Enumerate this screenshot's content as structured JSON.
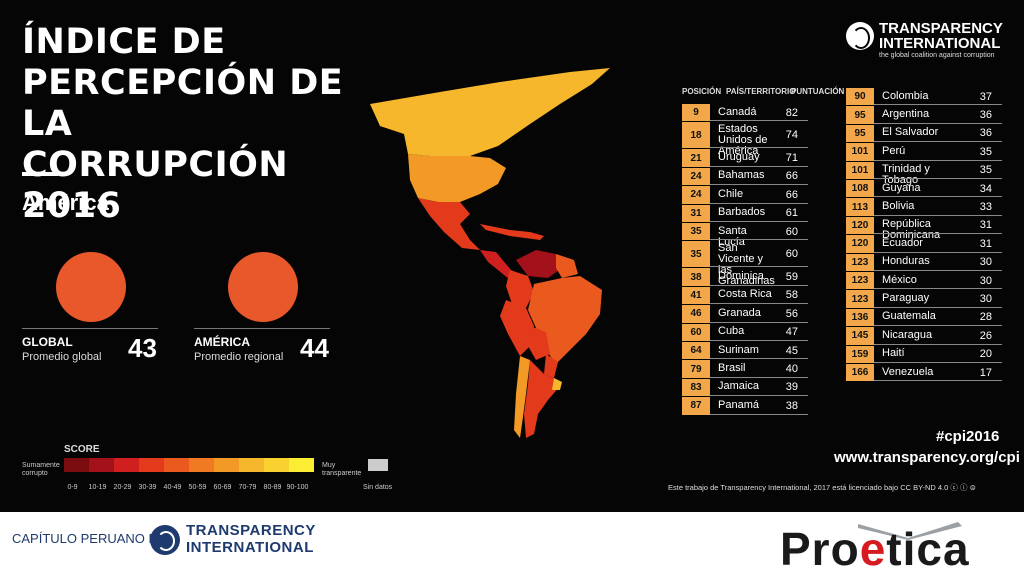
{
  "infographic": {
    "title_lines": [
      "ÍNDICE DE",
      "PERCEPCIÓN DE LA",
      "CORRUPCIÓN 2016"
    ],
    "region": "América",
    "global": {
      "label": "GLOBAL",
      "sub": "Promedio global",
      "value": "43"
    },
    "america": {
      "label": "AMÉRICA",
      "sub": "Promedio regional",
      "value": "44"
    },
    "legend": {
      "title": "SCORE",
      "left_label": "Sumamente corrupto",
      "right_label": "Muy transparente",
      "nodata": "Sin datos",
      "ticks": [
        "0-9",
        "10-19",
        "20-29",
        "30-39",
        "40-49",
        "50-59",
        "60-69",
        "70-79",
        "80-89",
        "90-100"
      ],
      "colors": [
        "#7a0c10",
        "#a3121a",
        "#cf1f1f",
        "#e33a1c",
        "#ea5a1e",
        "#ef7a22",
        "#f39a26",
        "#f6b72c",
        "#f9d22f",
        "#fbec34"
      ]
    },
    "logo": {
      "line1": "TRANSPARENCY",
      "line2": "INTERNATIONAL",
      "tagline": "the global coalition against corruption"
    },
    "table": {
      "headers": {
        "position": "POSICIÓN",
        "country": "PAÍS/TERRITORIO",
        "score": "PUNTUACIÓN"
      },
      "left": [
        {
          "pos": "9",
          "name": "Canadá",
          "score": "82"
        },
        {
          "pos": "18",
          "name": "Estados Unidos de América",
          "score": "74"
        },
        {
          "pos": "21",
          "name": "Uruguay",
          "score": "71"
        },
        {
          "pos": "24",
          "name": "Bahamas",
          "score": "66"
        },
        {
          "pos": "24",
          "name": "Chile",
          "score": "66"
        },
        {
          "pos": "31",
          "name": "Barbados",
          "score": "61"
        },
        {
          "pos": "35",
          "name": "Santa Lucía",
          "score": "60"
        },
        {
          "pos": "35",
          "name": "San Vicente y las Granadinas",
          "score": "60"
        },
        {
          "pos": "38",
          "name": "Dominica",
          "score": "59"
        },
        {
          "pos": "41",
          "name": "Costa Rica",
          "score": "58"
        },
        {
          "pos": "46",
          "name": "Granada",
          "score": "56"
        },
        {
          "pos": "60",
          "name": "Cuba",
          "score": "47"
        },
        {
          "pos": "64",
          "name": "Surinam",
          "score": "45"
        },
        {
          "pos": "79",
          "name": "Brasil",
          "score": "40"
        },
        {
          "pos": "83",
          "name": "Jamaica",
          "score": "39"
        },
        {
          "pos": "87",
          "name": "Panamá",
          "score": "38"
        }
      ],
      "right": [
        {
          "pos": "90",
          "name": "Colombia",
          "score": "37"
        },
        {
          "pos": "95",
          "name": "Argentina",
          "score": "36"
        },
        {
          "pos": "95",
          "name": "El Salvador",
          "score": "36"
        },
        {
          "pos": "101",
          "name": "Perú",
          "score": "35"
        },
        {
          "pos": "101",
          "name": "Trinidad y Tobago",
          "score": "35"
        },
        {
          "pos": "108",
          "name": "Guyana",
          "score": "34"
        },
        {
          "pos": "113",
          "name": "Bolivia",
          "score": "33"
        },
        {
          "pos": "120",
          "name": "República Dominicana",
          "score": "31"
        },
        {
          "pos": "120",
          "name": "Ecuador",
          "score": "31"
        },
        {
          "pos": "123",
          "name": "Honduras",
          "score": "30"
        },
        {
          "pos": "123",
          "name": "México",
          "score": "30"
        },
        {
          "pos": "123",
          "name": "Paraguay",
          "score": "30"
        },
        {
          "pos": "136",
          "name": "Guatemala",
          "score": "28"
        },
        {
          "pos": "145",
          "name": "Nicaragua",
          "score": "26"
        },
        {
          "pos": "159",
          "name": "Haití",
          "score": "20"
        },
        {
          "pos": "166",
          "name": "Venezuela",
          "score": "17"
        }
      ]
    },
    "hashtag": "#cpi2016",
    "url": "www.transparency.org/cpi",
    "license": "Este trabajo de Transparency International, 2017 está licenciado bajo CC BY-ND 4.0"
  },
  "footer": {
    "chapter": "CAPÍTULO PERUANO DE",
    "ti_line1": "TRANSPARENCY",
    "ti_line2": "INTERNATIONAL",
    "proetica_1": "Pro",
    "proetica_2": "e",
    "proetica_3": "tica"
  }
}
